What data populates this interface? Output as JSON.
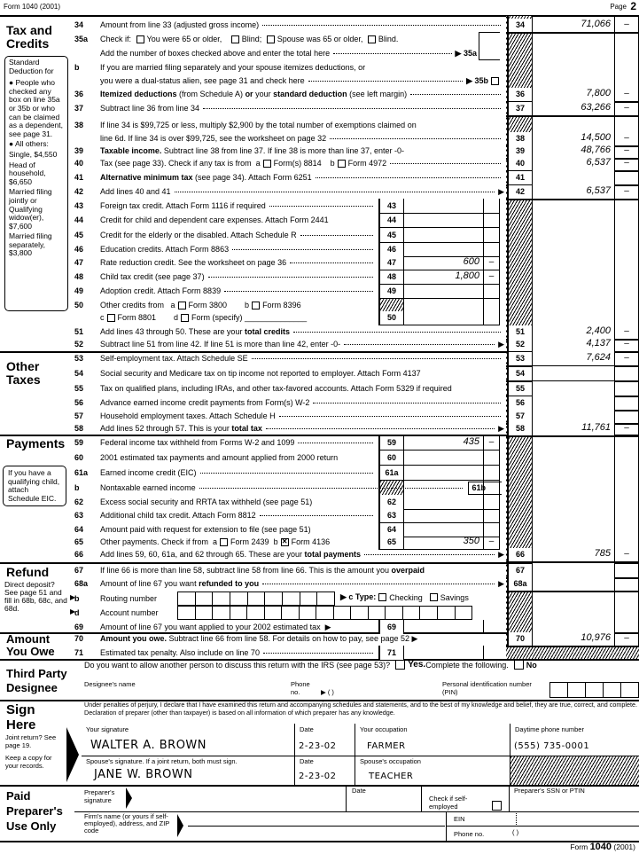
{
  "header": {
    "left": "Form 1040 (2001)",
    "page_label": "Page",
    "page_num": "2"
  },
  "sections": {
    "tax_credits": "Tax and Credits",
    "other_taxes": "Other Taxes",
    "payments": "Payments",
    "refund": "Refund",
    "amount_owe": "Amount You Owe",
    "third_party": "Third Party Designee",
    "sign": "Sign Here",
    "preparer": "Paid Preparer's Use Only"
  },
  "std_deduction_note": [
    "Standard Deduction for",
    "● People who checked any box on line 35a or 35b or who can be claimed as a dependent, see page 31.",
    "● All others:",
    "Single, $4,550",
    "Head of household, $6,650",
    "Married filing jointly or Qualifying widow(er), $7,600",
    "Married filing separately, $3,800"
  ],
  "eic_note": "If you have a qualifying child, attach Schedule EIC.",
  "refund_note": "Direct deposit? See page 51 and fill in 68b, 68c, and 68d.",
  "lines": [
    {
      "num": "34",
      "segs": [
        {
          "t": "Amount from line 33 (adjusted gross income)"
        },
        {
          "dots": 1
        }
      ],
      "outer": "34",
      "amount": "71,066",
      "cents": "–"
    },
    {
      "num": "35a",
      "segs": [
        {
          "t": "Check if: "
        },
        {
          "cb": false
        },
        {
          "t": "You were 65 or older,   "
        },
        {
          "cb": false
        },
        {
          "t": "Blind; "
        },
        {
          "cb": false
        },
        {
          "t": "Spouse was 65 or older, "
        },
        {
          "cb": false
        },
        {
          "t": "Blind."
        }
      ]
    },
    {
      "num": "",
      "segs": [
        {
          "t": "Add the number of boxes checked above and enter the total here"
        },
        {
          "dots": 1
        },
        {
          "t": "▶ 35a",
          "b": 1
        }
      ]
    },
    {
      "num": "b",
      "segs": [
        {
          "t": "If you are married filing separately and your spouse itemizes deductions, or"
        }
      ]
    },
    {
      "num": "",
      "segs": [
        {
          "t": "you were a dual-status alien, see page 31 and check here"
        },
        {
          "dots": 1
        },
        {
          "t": "▶ 35b",
          "b": 1
        },
        {
          "cb": false
        }
      ]
    },
    {
      "num": "36",
      "segs": [
        {
          "t": "Itemized deductions",
          "b": 1
        },
        {
          "t": " (from Schedule A) "
        },
        {
          "t": "or",
          "b": 1
        },
        {
          "t": " your "
        },
        {
          "t": "standard deduction",
          "b": 1
        },
        {
          "t": " (see left margin)"
        },
        {
          "dots": 1
        }
      ],
      "outer": "36",
      "amount": "7,800",
      "cents": "–"
    },
    {
      "num": "37",
      "segs": [
        {
          "t": "Subtract line 36 from line 34"
        },
        {
          "dots": 1
        }
      ],
      "outer": "37",
      "amount": "63,266",
      "cents": "–"
    },
    {
      "num": "38",
      "segs": [
        {
          "t": "If line 34 is $99,725 or less, multiply $2,900 by the total number of exemptions claimed on"
        }
      ]
    },
    {
      "num": "",
      "segs": [
        {
          "t": "line 6d. If line 34 is over $99,725, see the worksheet on page 32"
        },
        {
          "dots": 1
        }
      ],
      "outer": "38",
      "amount": "14,500",
      "cents": "–"
    },
    {
      "num": "39",
      "segs": [
        {
          "t": "Taxable income.",
          "b": 1
        },
        {
          "t": " Subtract line 38 from line 37. If line 38 is more than line 37, enter -0-"
        }
      ],
      "outer": "39",
      "amount": "48,766",
      "cents": "–"
    },
    {
      "num": "40",
      "segs": [
        {
          "t": "Tax (see page 33). Check if any tax is from  a"
        },
        {
          "cb": false
        },
        {
          "t": "Form(s) 8814    b"
        },
        {
          "cb": false
        },
        {
          "t": "Form 4972"
        },
        {
          "dots": 1
        }
      ],
      "outer": "40",
      "amount": "6,537",
      "cents": "–"
    },
    {
      "num": "41",
      "segs": [
        {
          "t": "Alternative minimum tax",
          "b": 1
        },
        {
          "t": " (see page 34). Attach Form 6251"
        },
        {
          "dots": 1
        }
      ],
      "outer": "41",
      "amount": "",
      "cents": ""
    },
    {
      "num": "42",
      "segs": [
        {
          "t": "Add lines 40 and 41"
        },
        {
          "dots": 1
        },
        {
          "t": "▶"
        }
      ],
      "outer": "42",
      "amount": "6,537",
      "cents": "–"
    },
    {
      "num": "43",
      "segs": [
        {
          "t": "Foreign tax credit. Attach Form 1116 if required"
        },
        {
          "dots": 1
        }
      ],
      "inner": "43",
      "amount": "",
      "cents": ""
    },
    {
      "num": "44",
      "segs": [
        {
          "t": "Credit for child and dependent care expenses. Attach Form 2441"
        }
      ],
      "inner": "44",
      "amount": "",
      "cents": ""
    },
    {
      "num": "45",
      "segs": [
        {
          "t": "Credit for the elderly or the disabled. Attach Schedule R"
        },
        {
          "dots": 1
        }
      ],
      "inner": "45",
      "amount": "",
      "cents": ""
    },
    {
      "num": "46",
      "segs": [
        {
          "t": "Education credits. Attach Form 8863"
        },
        {
          "dots": 1
        }
      ],
      "inner": "46",
      "amount": "",
      "cents": ""
    },
    {
      "num": "47",
      "segs": [
        {
          "t": "Rate reduction credit. See the worksheet on page 36"
        },
        {
          "dots": 1
        }
      ],
      "inner": "47",
      "amount": "600",
      "cents": "–"
    },
    {
      "num": "48",
      "segs": [
        {
          "t": "Child tax credit (see page 37)"
        },
        {
          "dots": 1
        }
      ],
      "inner": "48",
      "amount": "1,800",
      "cents": "–"
    },
    {
      "num": "49",
      "segs": [
        {
          "t": "Adoption credit. Attach Form 8839"
        },
        {
          "dots": 1
        }
      ],
      "inner": "49",
      "amount": "",
      "cents": ""
    },
    {
      "num": "50",
      "segs": [
        {
          "t": "Other credits from   a"
        },
        {
          "cb": false
        },
        {
          "t": "Form 3800        b"
        },
        {
          "cb": false
        },
        {
          "t": "Form 8396"
        }
      ]
    },
    {
      "num": "",
      "segs": [
        {
          "t": "c"
        },
        {
          "cb": false
        },
        {
          "t": "Form 8801        d"
        },
        {
          "cb": false
        },
        {
          "t": "Form (specify) ______________"
        }
      ],
      "inner": "50",
      "amount": "",
      "cents": ""
    },
    {
      "num": "51",
      "segs": [
        {
          "t": "Add lines 43 through 50. These are your "
        },
        {
          "t": "total credits",
          "b": 1
        },
        {
          "dots": 1
        }
      ],
      "outer": "51",
      "amount": "2,400",
      "cents": "–"
    },
    {
      "num": "52",
      "segs": [
        {
          "t": "Subtract line 51 from line 42. If line 51 is more than line 42, enter -0-"
        },
        {
          "dots": 1
        },
        {
          "t": "▶"
        }
      ],
      "outer": "52",
      "amount": "4,137",
      "cents": "–"
    },
    {
      "num": "53",
      "segs": [
        {
          "t": "Self-employment tax. Attach Schedule SE"
        },
        {
          "dots": 1
        }
      ],
      "outer": "53",
      "amount": "7,624",
      "cents": "–"
    },
    {
      "num": "54",
      "segs": [
        {
          "t": "Social security and Medicare tax on tip income not reported to employer. Attach Form 4137"
        }
      ],
      "outer": "54",
      "amount": "",
      "cents": ""
    },
    {
      "num": "55",
      "segs": [
        {
          "t": "Tax on qualified plans, including IRAs, and other tax-favored accounts. Attach Form 5329 if required"
        }
      ],
      "outer": "55",
      "amount": "",
      "cents": ""
    },
    {
      "num": "56",
      "segs": [
        {
          "t": "Advance earned income credit payments from Form(s) W-2"
        },
        {
          "dots": 1
        }
      ],
      "outer": "56",
      "amount": "",
      "cents": ""
    },
    {
      "num": "57",
      "segs": [
        {
          "t": "Household employment taxes. Attach Schedule H"
        },
        {
          "dots": 1
        }
      ],
      "outer": "57",
      "amount": "",
      "cents": ""
    },
    {
      "num": "58",
      "segs": [
        {
          "t": "Add lines 52 through 57. This is your "
        },
        {
          "t": "total tax",
          "b": 1
        },
        {
          "dots": 1
        },
        {
          "t": "▶"
        }
      ],
      "outer": "58",
      "amount": "11,761",
      "cents": "–"
    },
    {
      "num": "59",
      "segs": [
        {
          "t": "Federal income tax withheld from Forms W-2 and 1099"
        },
        {
          "dots": 1
        }
      ],
      "inner": "59",
      "amount": "435",
      "cents": "–"
    },
    {
      "num": "60",
      "segs": [
        {
          "t": "2001 estimated tax payments and amount applied from 2000 return"
        }
      ],
      "inner": "60",
      "amount": "",
      "cents": ""
    },
    {
      "num": "61a",
      "segs": [
        {
          "t": "Earned income credit (EIC)"
        },
        {
          "dots": 1
        }
      ],
      "inner": "61a",
      "amount": "",
      "cents": ""
    },
    {
      "num": "b",
      "segs": [
        {
          "t": "Nontaxable earned income"
        },
        {
          "dots": 1
        },
        {
          "t": "61b",
          "b": 1,
          "box": 1
        }
      ]
    },
    {
      "num": "62",
      "segs": [
        {
          "t": "Excess social security and RRTA tax withheld (see page 51)"
        }
      ],
      "inner": "62",
      "amount": "",
      "cents": ""
    },
    {
      "num": "63",
      "segs": [
        {
          "t": "Additional child tax credit. Attach Form 8812"
        },
        {
          "dots": 1
        }
      ],
      "inner": "63",
      "amount": "",
      "cents": ""
    },
    {
      "num": "64",
      "segs": [
        {
          "t": "Amount paid with request for extension to file (see page 51)"
        }
      ],
      "inner": "64",
      "amount": "",
      "cents": ""
    },
    {
      "num": "65",
      "segs": [
        {
          "t": "Other payments. Check if from  a"
        },
        {
          "cb": false
        },
        {
          "t": "Form 2439  b"
        },
        {
          "cb": true
        },
        {
          "t": "Form 4136"
        }
      ],
      "inner": "65",
      "amount": "350",
      "cents": "–"
    },
    {
      "num": "66",
      "segs": [
        {
          "t": "Add lines 59, 60, 61a, and 62 through 65. These are your "
        },
        {
          "t": "total payments",
          "b": 1
        },
        {
          "dots": 1
        },
        {
          "t": "▶"
        }
      ],
      "outer": "66",
      "amount": "785",
      "cents": "–"
    },
    {
      "num": "67",
      "segs": [
        {
          "t": "If line 66 is more than line 58, subtract line 58 from line 66. This is the amount you "
        },
        {
          "t": "overpaid",
          "b": 1
        }
      ],
      "outer": "67",
      "amount": "",
      "cents": ""
    },
    {
      "num": "68a",
      "segs": [
        {
          "t": "Amount of line 67 you want "
        },
        {
          "t": "refunded to you",
          "b": 1
        },
        {
          "dots": 1
        },
        {
          "t": "▶"
        }
      ],
      "outer": "68a",
      "amount": "",
      "cents": ""
    },
    {
      "num": "b",
      "segs": [
        {
          "t": "Routing number"
        }
      ]
    },
    {
      "num": "d",
      "segs": [
        {
          "t": "Account number"
        }
      ]
    },
    {
      "num": "69",
      "segs": [
        {
          "t": "Amount of line 67 you want "
        },
        {
          "t": "applied to your 2002 estimated tax",
          "b": 0
        },
        {
          "t": "  ▶"
        }
      ],
      "inner": "69",
      "amount": "",
      "cents": ""
    },
    {
      "num": "70",
      "segs": [
        {
          "t": "Amount you owe.",
          "b": 1
        },
        {
          "t": " Subtract line 66 from line 58. For details on how to pay, see page 52 ▶"
        }
      ],
      "outer": "70",
      "amount": "10,976",
      "cents": "–"
    },
    {
      "num": "71",
      "segs": [
        {
          "t": "Estimated tax penalty. Also include on line 70"
        },
        {
          "dots": 1
        }
      ],
      "inner": "71",
      "amount": "",
      "cents": ""
    }
  ],
  "refund": {
    "type_label": "▶ c Type:",
    "checking": "Checking",
    "savings": "Savings",
    "routing_digits": 9,
    "account_digits": 17
  },
  "third_party": {
    "question": "Do you want to allow another person to discuss this return with the IRS (see page 53)?",
    "yes": "Yes.",
    "yes_rest": " Complete the following.",
    "no": "No",
    "designee_name": "Designee's name",
    "phone": "Phone no.",
    "phone_paren": "▶ (        )",
    "pin": "Personal identification number (PIN)",
    "pin_digits": 5
  },
  "sign": {
    "perjury": "Under penalties of perjury, I declare that I have examined this return and accompanying schedules and statements, and to the best of my knowledge and belief, they are true, correct, and complete. Declaration of preparer (other than taxpayer) is based on all information of which preparer has any knowledge.",
    "joint_note": "Joint return? See page 19.",
    "keep_note": "Keep a copy for your records.",
    "your_sig_label": "Your signature",
    "your_sig": "WALTER A. BROWN",
    "date_label": "Date",
    "your_date": "2-23-02",
    "occ_label": "Your occupation",
    "your_occ": "FARMER",
    "phone_label": "Daytime phone number",
    "phone": "(555)  735-0001",
    "spouse_sig_label": "Spouse's signature. If a joint return, both must sign.",
    "spouse_sig": "JANE W. BROWN",
    "spouse_date": "2-23-02",
    "spouse_occ_label": "Spouse's occupation",
    "spouse_occ": "TEACHER"
  },
  "preparer": {
    "sig_label": "Preparer's signature",
    "date_label": "Date",
    "self_employed": "Check if self-employed",
    "ssn_label": "Preparer's SSN or PTIN",
    "firm_label": "Firm's name (or yours if self-employed), address, and ZIP code",
    "ein": "EIN",
    "phone": "Phone no.",
    "phone_paren": "(        )"
  },
  "footer": {
    "form": "Form",
    "num": "1040",
    "year": "(2001)"
  }
}
